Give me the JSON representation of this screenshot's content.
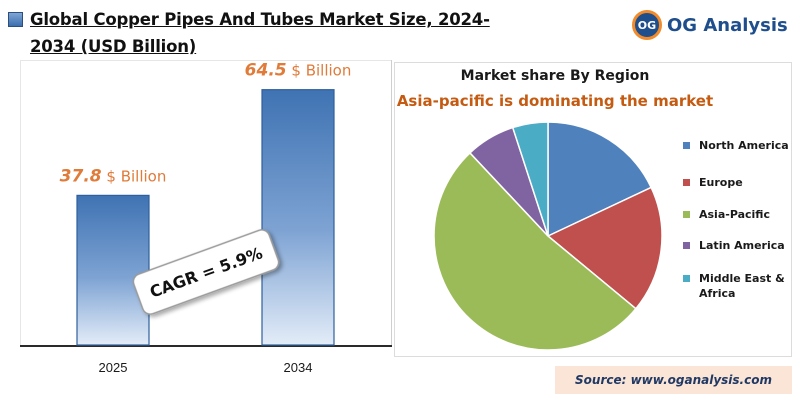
{
  "header": {
    "title": "Global Copper Pipes And Tubes Market Size, 2024-2034 (USD Billion)"
  },
  "brand": {
    "logo_text": "OG",
    "name": "OG Analysis"
  },
  "cagr_label": "CAGR = 5.9%",
  "source": "Source: www.oganalysis.com",
  "icons": {
    "title": "bar-chart-icon",
    "brand": "og-logo-icon"
  },
  "chart_data": [
    {
      "type": "bar",
      "categories": [
        "2025",
        "2034"
      ],
      "values": [
        37.8,
        64.5
      ],
      "value_labels": [
        {
          "number": "37.8",
          "unit": " $ Billion"
        },
        {
          "number": "64.5",
          "unit": " $ Billion"
        }
      ],
      "ylim": [
        0,
        72
      ],
      "grid": false,
      "colors": {
        "bar_top": "#4a7ebb",
        "bar_bottom": "#dae6f5",
        "label": "#e07b39"
      }
    },
    {
      "type": "pie",
      "title": "Market share By Region",
      "subtitle": "Asia-pacific is dominating the market",
      "legend_position": "right",
      "slices": [
        {
          "label": "North America",
          "value": 18,
          "color": "#4f81bd"
        },
        {
          "label": "Europe",
          "value": 18,
          "color": "#c0504d"
        },
        {
          "label": "Asia-Pacific",
          "value": 52,
          "color": "#9bbb59"
        },
        {
          "label": "Latin America",
          "value": 7,
          "color": "#8064a2"
        },
        {
          "label": "Middle East & Africa",
          "value": 5,
          "color": "#4bacc6"
        }
      ]
    }
  ]
}
